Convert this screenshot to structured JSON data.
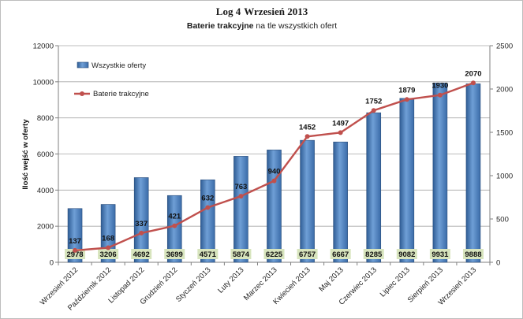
{
  "chart_data": {
    "type": "bar+line",
    "title": "Log 4",
    "title_date": "Wrzesień 2013",
    "subtitle_bold": "Baterie trakcyjne",
    "subtitle_rest": " na tle wszystkich ofert",
    "ylabel": "Ilość wejść w oferty",
    "categories": [
      "Wrzesień 2012",
      "Październik 2012",
      "Listopad 2012",
      "Grudzień 2012",
      "Styczeń 2013",
      "Luty 2013",
      "Marzec 2013",
      "Kwiecień 2013",
      "Maj 2013",
      "Czerwiec 2013",
      "Lipiec 2013",
      "Sierpień 2013",
      "Wrzesień 2013"
    ],
    "series": [
      {
        "name": "Wszystkie oferty",
        "type": "bar",
        "axis": "left",
        "color": "#4f81bd",
        "values": [
          2978,
          3206,
          4692,
          3699,
          4571,
          5874,
          6225,
          6757,
          6667,
          8285,
          9082,
          9931,
          9888
        ]
      },
      {
        "name": "Baterie trakcyjne",
        "type": "line",
        "axis": "right",
        "color": "#c0504d",
        "values": [
          137,
          168,
          337,
          421,
          632,
          763,
          940,
          1452,
          1497,
          1752,
          1879,
          1930,
          2070
        ]
      }
    ],
    "y_left": {
      "min": 0,
      "max": 12000,
      "ticks": [
        "0",
        "2000",
        "4000",
        "6000",
        "8000",
        "10000",
        "12000"
      ]
    },
    "y_right": {
      "min": 0,
      "max": 2500,
      "ticks": [
        "0",
        "500",
        "1000",
        "1500",
        "2000",
        "2500"
      ]
    },
    "grid": true,
    "legend_position": "top-left",
    "bar_label_bg": "#d7e4bd"
  }
}
